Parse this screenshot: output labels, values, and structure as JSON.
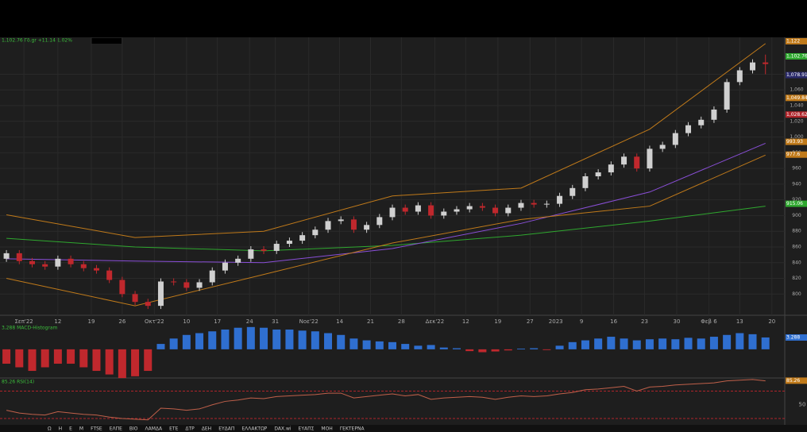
{
  "header": {
    "quote": "1,102.76 Γδ.gr +11.14 1.02%"
  },
  "chart_data": [
    {
      "type": "candlestick",
      "open": [
        845,
        852,
        842,
        838,
        835,
        845,
        838,
        833,
        830,
        818,
        800,
        790,
        785,
        816,
        815,
        808,
        815,
        830,
        840,
        845,
        857,
        855,
        864,
        868,
        875,
        882,
        893,
        895,
        882,
        888,
        898,
        910,
        905,
        913,
        900,
        905,
        908,
        912,
        910,
        903,
        910,
        916,
        914,
        915,
        925,
        935,
        950,
        955,
        965,
        975,
        960,
        985,
        990,
        1005,
        1015,
        1022,
        1035,
        1070,
        1085,
        1095
      ],
      "high": [
        856,
        856,
        846,
        842,
        849,
        849,
        842,
        837,
        834,
        822,
        804,
        794,
        820,
        820,
        819,
        819,
        834,
        844,
        849,
        861,
        861,
        868,
        872,
        879,
        886,
        897,
        899,
        899,
        892,
        902,
        914,
        914,
        917,
        917,
        909,
        912,
        916,
        916,
        914,
        914,
        920,
        920,
        919,
        929,
        939,
        954,
        959,
        969,
        979,
        979,
        989,
        994,
        1009,
        1019,
        1026,
        1039,
        1074,
        1089,
        1099,
        1105
      ],
      "low": [
        841,
        838,
        834,
        831,
        831,
        834,
        829,
        826,
        814,
        796,
        786,
        781,
        781,
        811,
        804,
        804,
        811,
        826,
        836,
        841,
        851,
        851,
        860,
        864,
        871,
        878,
        889,
        878,
        878,
        884,
        894,
        901,
        901,
        896,
        896,
        901,
        904,
        906,
        899,
        899,
        906,
        910,
        910,
        911,
        921,
        931,
        946,
        951,
        961,
        956,
        956,
        981,
        986,
        1001,
        1011,
        1018,
        1031,
        1066,
        1081,
        1080
      ],
      "close": [
        852,
        842,
        838,
        835,
        845,
        838,
        833,
        830,
        818,
        800,
        790,
        785,
        816,
        815,
        808,
        815,
        830,
        840,
        845,
        857,
        855,
        864,
        868,
        875,
        882,
        893,
        895,
        882,
        888,
        898,
        910,
        905,
        913,
        900,
        905,
        908,
        912,
        910,
        903,
        910,
        916,
        914,
        915,
        925,
        935,
        950,
        955,
        965,
        975,
        960,
        985,
        990,
        1005,
        1015,
        1022,
        1035,
        1070,
        1085,
        1095,
        1093
      ],
      "up_color": "#d0d0d0",
      "down_color": "#c0282d",
      "lines": [
        {
          "color": "#2fa82f",
          "x": [
            0,
            10,
            20,
            30,
            40,
            50,
            59
          ],
          "values": [
            871,
            860,
            855,
            862,
            875,
            893,
            912
          ]
        },
        {
          "color": "#8a4fd8",
          "x": [
            0,
            10,
            20,
            30,
            40,
            50,
            59
          ],
          "values": [
            845,
            842,
            840,
            858,
            890,
            930,
            992
          ]
        },
        {
          "color": "#c07a1a",
          "x": [
            0,
            10,
            20,
            30,
            40,
            50,
            59
          ],
          "values": [
            901,
            872,
            880,
            925,
            935,
            1010,
            1119
          ]
        },
        {
          "color": "#c07a1a",
          "x": [
            0,
            10,
            20,
            30,
            40,
            50,
            59
          ],
          "values": [
            820,
            785,
            825,
            865,
            895,
            912,
            977
          ]
        }
      ],
      "xlim": [
        -0.5,
        60.5
      ],
      "ylim": [
        773,
        1127
      ],
      "yticks": [
        800,
        820,
        840,
        860,
        880,
        900,
        920,
        940,
        960,
        980,
        {
          "value": 1000,
          "label": "1,000"
        },
        {
          "value": 1020,
          "label": "1,020"
        },
        {
          "value": 1040,
          "label": "1,040"
        },
        {
          "value": 1060,
          "label": "1,060"
        },
        {
          "value": 1080,
          "label": "1,080"
        }
      ],
      "xticks": [
        {
          "value": 1.36,
          "label": "Σεπ'22"
        },
        {
          "value": 4.0,
          "label": "12"
        },
        {
          "value": 6.6,
          "label": "19"
        },
        {
          "value": 9.0,
          "label": "26"
        },
        {
          "value": 11.5,
          "label": "Οκτ'22"
        },
        {
          "value": 14.0,
          "label": "10"
        },
        {
          "value": 16.4,
          "label": "17"
        },
        {
          "value": 18.9,
          "label": "24"
        },
        {
          "value": 20.9,
          "label": "31"
        },
        {
          "value": 23.5,
          "label": "Νοε'22"
        },
        {
          "value": 25.9,
          "label": "14"
        },
        {
          "value": 28.3,
          "label": "21"
        },
        {
          "value": 30.7,
          "label": "28"
        },
        {
          "value": 33.3,
          "label": "Δεκ'22"
        },
        {
          "value": 35.7,
          "label": "12"
        },
        {
          "value": 38.2,
          "label": "19"
        },
        {
          "value": 40.7,
          "label": "27"
        },
        {
          "value": 42.7,
          "label": "2023"
        },
        {
          "value": 44.7,
          "label": "9"
        },
        {
          "value": 47.2,
          "label": "16"
        },
        {
          "value": 49.6,
          "label": "23"
        },
        {
          "value": 52.1,
          "label": "30"
        },
        {
          "value": 54.6,
          "label": "Φεβ 6"
        },
        {
          "value": 57.0,
          "label": "13"
        },
        {
          "value": 59.5,
          "label": "20"
        }
      ],
      "badges": [
        {
          "value": 1122,
          "label": "1,122",
          "color": "#c07a1a"
        },
        {
          "value": 1102.76,
          "label": "1,102.76",
          "color": "#2fa82f"
        },
        {
          "value": 1078.91,
          "label": "1,078.91",
          "color": "#2a2a6a"
        },
        {
          "value": 1049.84,
          "label": "1,049.84",
          "color": "#c07a1a"
        },
        {
          "value": 1028.62,
          "label": "1,028.62",
          "color": "#b0242a"
        },
        {
          "value": 993.93,
          "label": "993.93",
          "color": "#c07a1a"
        },
        {
          "value": 977.6,
          "label": "977.6",
          "color": "#c07a1a"
        },
        {
          "value": 915.06,
          "label": "915.06",
          "color": "#2fa82f"
        }
      ]
    },
    {
      "type": "histogram-bars",
      "title": "3,288 MACD-Histogram",
      "values": [
        -4,
        -5,
        -6,
        -5,
        -4,
        -4,
        -5,
        -6,
        -7,
        -8,
        -7.5,
        -6,
        1.5,
        3,
        4,
        4.5,
        5,
        5.5,
        6,
        6.2,
        6,
        5.5,
        5.5,
        5.2,
        5,
        4.5,
        4,
        3,
        2.5,
        2.2,
        2,
        1.5,
        1,
        1.2,
        0.5,
        0.3,
        -0.5,
        -0.8,
        -0.6,
        -0.3,
        0.2,
        0.3,
        -0.2,
        1,
        2,
        2.5,
        3,
        3.5,
        3,
        2.5,
        2.8,
        3,
        2.8,
        3.2,
        3,
        3.5,
        4,
        4.5,
        4.2,
        3.3
      ],
      "pos_color": "#2f6fd0",
      "neg_color": "#c0282d",
      "ylim": [
        -8.2,
        6.6
      ],
      "badge": {
        "value": 3.288,
        "label": "3.288",
        "color": "#2f6fd0"
      }
    },
    {
      "type": "line",
      "title": "85.26 RSI(14)",
      "values": [
        42,
        38,
        36,
        35,
        40,
        38,
        36,
        35,
        32,
        30,
        29,
        28,
        45,
        44,
        42,
        44,
        50,
        55,
        57,
        60,
        59,
        62,
        63,
        64,
        65,
        67,
        67,
        60,
        62,
        64,
        66,
        63,
        65,
        58,
        60,
        61,
        62,
        61,
        58,
        61,
        63,
        62,
        63,
        66,
        68,
        72,
        73,
        75,
        77,
        70,
        76,
        77,
        79,
        80,
        81,
        82,
        85,
        86,
        87,
        85
      ],
      "color": "#c0604a",
      "ylim": [
        23,
        88
      ],
      "yticks": [
        50
      ],
      "levels": [
        30,
        70
      ],
      "badge": {
        "value": 85.26,
        "label": "85.26",
        "color": "#c07a1a"
      }
    }
  ],
  "toolbar": [
    "Ω",
    "H",
    "Ε",
    "M",
    "FTSE",
    "ΕΛΠΕ",
    "ΒΙΟ",
    "ΛΑΜΔΑ",
    "ΕΤΕ",
    "ΔΤΡ",
    "ΔΕΗ",
    "ΕΥΔΑΠ",
    "ΕΛΛΑΚΤΩΡ",
    "DAX.wi",
    "ΕΥΑΠΣ",
    "ΜΟΗ",
    "ΓΕΚΤΕΡΝΑ"
  ]
}
